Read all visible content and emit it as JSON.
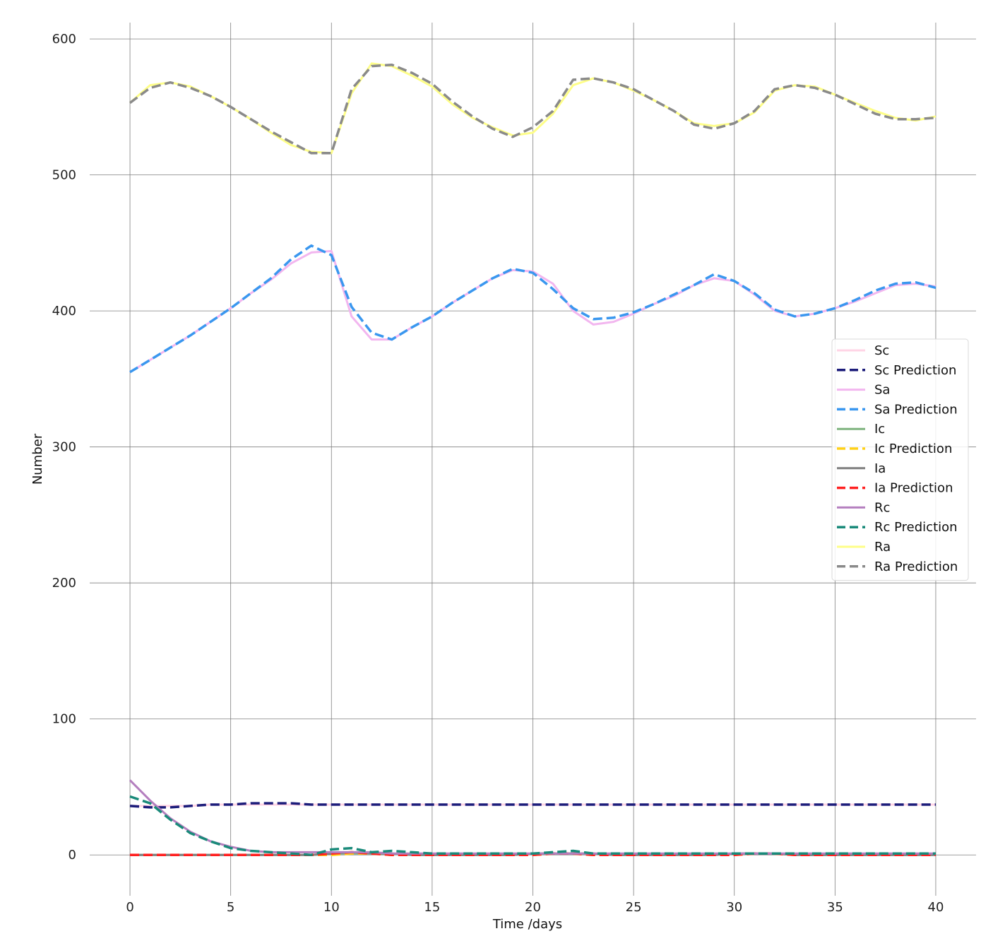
{
  "chart_data": {
    "type": "line",
    "xlabel": "Time /days",
    "ylabel": "Number",
    "xlim": [
      -2,
      42
    ],
    "ylim": [
      -30,
      612
    ],
    "xticks": [
      0,
      5,
      10,
      15,
      20,
      25,
      30,
      35,
      40
    ],
    "yticks": [
      0,
      100,
      200,
      300,
      400,
      500,
      600
    ],
    "grid": true,
    "legend_position": "right",
    "x": [
      0,
      1,
      2,
      3,
      4,
      5,
      6,
      7,
      8,
      9,
      10,
      11,
      12,
      13,
      14,
      15,
      16,
      17,
      18,
      19,
      20,
      21,
      22,
      23,
      24,
      25,
      26,
      27,
      28,
      29,
      30,
      31,
      32,
      33,
      34,
      35,
      36,
      37,
      38,
      39,
      40
    ],
    "series": [
      {
        "name": "Sc",
        "color": "#ffd4e5",
        "dash": "solid",
        "values": [
          36,
          36,
          36,
          36,
          37,
          37,
          37,
          37,
          37,
          37,
          37,
          37,
          37,
          37,
          37,
          37,
          37,
          37,
          37,
          37,
          37,
          37,
          37,
          37,
          37,
          37,
          37,
          37,
          37,
          37,
          37,
          37,
          37,
          37,
          37,
          37,
          37,
          37,
          37,
          37,
          37
        ]
      },
      {
        "name": "Sc Prediction",
        "color": "#1c1c7a",
        "dash": "dashed",
        "values": [
          36,
          35,
          35,
          36,
          37,
          37,
          38,
          38,
          38,
          37,
          37,
          37,
          37,
          37,
          37,
          37,
          37,
          37,
          37,
          37,
          37,
          37,
          37,
          37,
          37,
          37,
          37,
          37,
          37,
          37,
          37,
          37,
          37,
          37,
          37,
          37,
          37,
          37,
          37,
          37,
          37
        ]
      },
      {
        "name": "Sa",
        "color": "#f2b6ef",
        "dash": "solid",
        "values": [
          355,
          364,
          373,
          382,
          392,
          402,
          413,
          423,
          435,
          443,
          444,
          396,
          379,
          379,
          388,
          396,
          406,
          415,
          424,
          430,
          429,
          420,
          400,
          390,
          392,
          398,
          405,
          411,
          419,
          424,
          422,
          412,
          400,
          396,
          398,
          402,
          407,
          413,
          419,
          420,
          418
        ]
      },
      {
        "name": "Sa Prediction",
        "color": "#3a97ef",
        "dash": "dashed",
        "values": [
          355,
          364,
          373,
          382,
          392,
          402,
          413,
          424,
          438,
          448,
          441,
          403,
          384,
          379,
          388,
          396,
          406,
          415,
          424,
          431,
          428,
          416,
          402,
          394,
          395,
          399,
          405,
          412,
          419,
          427,
          422,
          413,
          401,
          396,
          398,
          402,
          408,
          415,
          420,
          421,
          417
        ]
      },
      {
        "name": "Ic",
        "color": "#7fb47f",
        "dash": "solid",
        "values": [
          0,
          0,
          0,
          0,
          0,
          0,
          0,
          0,
          0,
          0,
          1,
          1,
          1,
          1,
          0,
          0,
          0,
          0,
          0,
          0,
          1,
          1,
          1,
          1,
          0,
          0,
          0,
          0,
          0,
          0,
          1,
          1,
          1,
          0,
          0,
          0,
          0,
          0,
          0,
          0,
          0
        ]
      },
      {
        "name": "Ic Prediction",
        "color": "#ffd11a",
        "dash": "dashed",
        "values": [
          0,
          0,
          0,
          0,
          0,
          0,
          0,
          0,
          0,
          0,
          0,
          1,
          1,
          0,
          0,
          0,
          0,
          0,
          0,
          0,
          0,
          1,
          1,
          0,
          0,
          0,
          0,
          0,
          0,
          0,
          0,
          1,
          1,
          0,
          0,
          0,
          0,
          0,
          0,
          0,
          0
        ]
      },
      {
        "name": "Ia",
        "color": "#7f7f7f",
        "dash": "solid",
        "values": [
          0,
          0,
          0,
          0,
          0,
          0,
          0,
          0,
          0,
          0,
          1,
          2,
          1,
          1,
          0,
          0,
          0,
          0,
          0,
          0,
          1,
          1,
          1,
          1,
          0,
          0,
          0,
          0,
          0,
          0,
          1,
          1,
          1,
          0,
          0,
          0,
          0,
          0,
          0,
          0,
          0
        ]
      },
      {
        "name": "Ia Prediction",
        "color": "#ff2020",
        "dash": "dashed",
        "values": [
          0,
          0,
          0,
          0,
          0,
          0,
          0,
          0,
          0,
          0,
          1,
          2,
          1,
          0,
          0,
          0,
          0,
          0,
          0,
          0,
          0,
          1,
          1,
          0,
          0,
          0,
          0,
          0,
          0,
          0,
          0,
          1,
          1,
          0,
          0,
          0,
          0,
          0,
          0,
          0,
          0
        ]
      },
      {
        "name": "Rc",
        "color": "#b47fbf",
        "dash": "solid",
        "values": [
          55,
          40,
          27,
          17,
          10,
          6,
          3,
          2,
          2,
          2,
          2,
          2,
          2,
          1,
          1,
          1,
          1,
          1,
          1,
          1,
          1,
          1,
          1,
          1,
          1,
          1,
          1,
          1,
          1,
          1,
          1,
          1,
          1,
          1,
          1,
          1,
          1,
          1,
          1,
          1,
          1
        ]
      },
      {
        "name": "Rc Prediction",
        "color": "#1a8a7a",
        "dash": "dashed",
        "values": [
          43,
          38,
          26,
          16,
          10,
          5,
          3,
          2,
          1,
          0,
          4,
          5,
          2,
          3,
          2,
          1,
          1,
          1,
          1,
          1,
          1,
          2,
          3,
          1,
          1,
          1,
          1,
          1,
          1,
          1,
          1,
          1,
          1,
          1,
          1,
          1,
          1,
          1,
          1,
          1,
          1
        ]
      },
      {
        "name": "Ra",
        "color": "#fefe88",
        "dash": "solid",
        "values": [
          553,
          566,
          568,
          565,
          558,
          550,
          541,
          531,
          522,
          517,
          516,
          560,
          582,
          580,
          573,
          565,
          552,
          542,
          535,
          529,
          531,
          545,
          566,
          571,
          568,
          562,
          555,
          547,
          538,
          536,
          538,
          546,
          562,
          566,
          565,
          559,
          553,
          547,
          542,
          540,
          543
        ]
      },
      {
        "name": "Ra Prediction",
        "color": "#8a8a8a",
        "dash": "dashed",
        "values": [
          553,
          564,
          568,
          564,
          558,
          550,
          541,
          532,
          524,
          516,
          516,
          563,
          580,
          581,
          575,
          567,
          554,
          543,
          534,
          528,
          535,
          547,
          570,
          571,
          568,
          563,
          555,
          547,
          537,
          534,
          538,
          547,
          563,
          566,
          564,
          559,
          552,
          545,
          541,
          541,
          542
        ]
      }
    ]
  }
}
